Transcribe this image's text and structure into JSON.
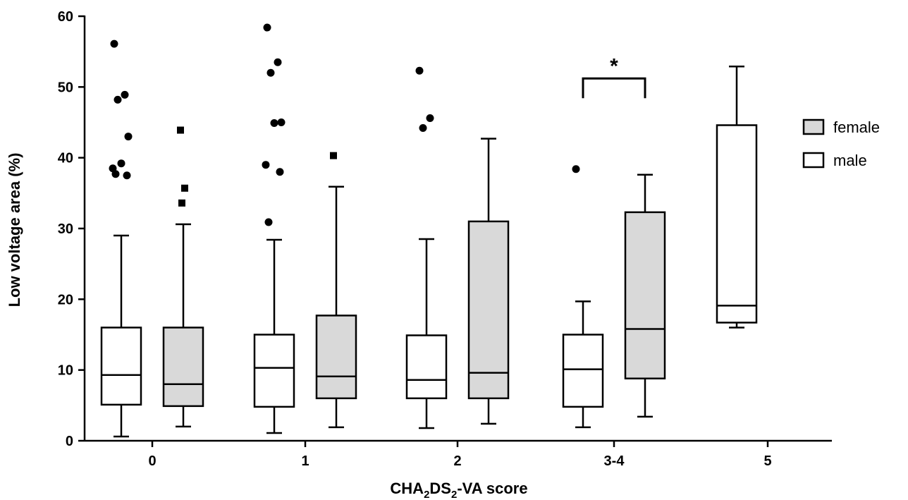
{
  "chart_data": {
    "type": "box",
    "ylabel": "Low voltage area (%)",
    "xlabel": {
      "main": "CHA",
      "sub1": "2",
      "mid": "DS",
      "sub2": "2",
      "tail": "-VA score"
    },
    "ylim": [
      0,
      60
    ],
    "yticks": [
      0,
      10,
      20,
      30,
      40,
      50,
      60
    ],
    "categories": [
      "0",
      "1",
      "2",
      "3-4",
      "5"
    ],
    "legend": {
      "position": "right",
      "entries": [
        {
          "label": "female",
          "color": "#d9d9d9"
        },
        {
          "label": "male",
          "color": "#ffffff"
        }
      ]
    },
    "series": [
      {
        "name": "male",
        "fill": "#ffffff",
        "marker": "circle",
        "boxes": [
          {
            "category": "0",
            "whisker_low": 0.6,
            "q1": 5.1,
            "median": 9.3,
            "q3": 16.0,
            "whisker_high": 29.0,
            "outliers": [
              56.1,
              48.9,
              48.2,
              43.0,
              39.2,
              38.5,
              37.5,
              37.7
            ]
          },
          {
            "category": "1",
            "whisker_low": 1.1,
            "q1": 4.8,
            "median": 10.3,
            "q3": 15.0,
            "whisker_high": 28.4,
            "outliers": [
              58.4,
              53.5,
              52.0,
              45.0,
              44.9,
              39.0,
              38.0,
              30.9
            ]
          },
          {
            "category": "2",
            "whisker_low": 1.8,
            "q1": 6.0,
            "median": 8.6,
            "q3": 14.9,
            "whisker_high": 28.5,
            "outliers": [
              52.3,
              45.6,
              44.2
            ]
          },
          {
            "category": "3-4",
            "whisker_low": 1.9,
            "q1": 4.8,
            "median": 10.1,
            "q3": 15.0,
            "whisker_high": 19.7,
            "outliers": [
              38.4
            ]
          },
          {
            "category": "5",
            "whisker_low": 16.0,
            "q1": 16.7,
            "median": 19.1,
            "q3": 44.6,
            "whisker_high": 52.9,
            "outliers": []
          }
        ]
      },
      {
        "name": "female",
        "fill": "#d9d9d9",
        "marker": "square",
        "boxes": [
          {
            "category": "0",
            "whisker_low": 2.0,
            "q1": 4.9,
            "median": 8.0,
            "q3": 16.0,
            "whisker_high": 30.6,
            "outliers": [
              43.9,
              35.7,
              33.6
            ]
          },
          {
            "category": "1",
            "whisker_low": 1.9,
            "q1": 6.0,
            "median": 9.1,
            "q3": 17.7,
            "whisker_high": 35.9,
            "outliers": [
              40.3
            ]
          },
          {
            "category": "2",
            "whisker_low": 2.4,
            "q1": 6.0,
            "median": 9.6,
            "q3": 31.0,
            "whisker_high": 42.7,
            "outliers": []
          },
          {
            "category": "3-4",
            "whisker_low": 3.4,
            "q1": 8.8,
            "median": 15.8,
            "q3": 32.3,
            "whisker_high": 37.6,
            "outliers": []
          }
        ]
      }
    ],
    "annotation": {
      "text": "*",
      "category": "3-4",
      "y": 51.2
    }
  }
}
